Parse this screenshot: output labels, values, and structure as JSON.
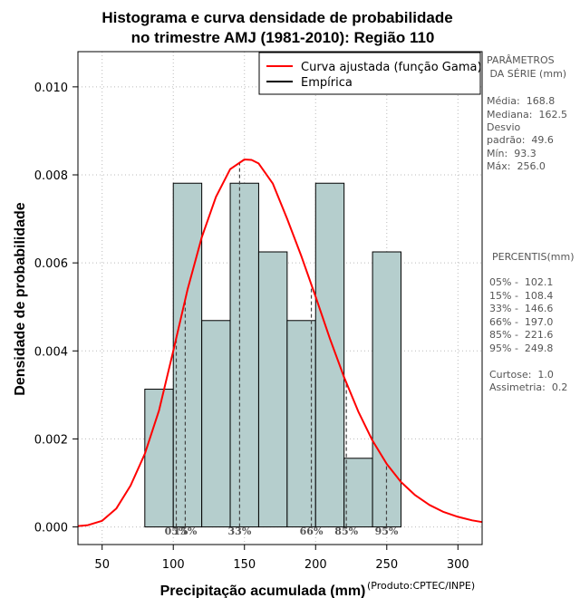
{
  "chart_data": {
    "type": "bar",
    "title_line1": "Histograma e curva densidade de probabilidade",
    "title_line2": "no trimestre AMJ (1981-2010): Região 110",
    "xlabel": "Precipitação acumulada (mm)",
    "ylabel": "Densidade de probabilidade",
    "credit": "(Produto:CPTEC/INPE)",
    "xlim": [
      33,
      317
    ],
    "ylim": [
      -0.0004,
      0.0108
    ],
    "xticks": [
      50,
      100,
      150,
      200,
      250,
      300
    ],
    "yticks": [
      0.0,
      0.002,
      0.004,
      0.006,
      0.008,
      0.01
    ],
    "ytick_labels": [
      "0.000",
      "0.002",
      "0.004",
      "0.006",
      "0.008",
      "0.010"
    ],
    "grid": true,
    "bars": [
      {
        "x0": 80,
        "x1": 100,
        "density": 0.00313
      },
      {
        "x0": 100,
        "x1": 120,
        "density": 0.00781
      },
      {
        "x0": 120,
        "x1": 140,
        "density": 0.00469
      },
      {
        "x0": 140,
        "x1": 160,
        "density": 0.00781
      },
      {
        "x0": 160,
        "x1": 180,
        "density": 0.00625
      },
      {
        "x0": 180,
        "x1": 200,
        "density": 0.00469
      },
      {
        "x0": 200,
        "x1": 220,
        "density": 0.00781
      },
      {
        "x0": 220,
        "x1": 240,
        "density": 0.00156
      },
      {
        "x0": 240,
        "x1": 260,
        "density": 0.00625
      }
    ],
    "curve": {
      "name": "Curva ajustada (função Gama)",
      "color": "#ff0000",
      "x": [
        33,
        40,
        50,
        60,
        70,
        80,
        90,
        100,
        110,
        120,
        130,
        140,
        150,
        155,
        160,
        170,
        180,
        190,
        200,
        210,
        220,
        230,
        240,
        250,
        260,
        270,
        280,
        290,
        300,
        310,
        317
      ],
      "y": [
        2e-05,
        4e-05,
        0.00014,
        0.00042,
        0.00094,
        0.00166,
        0.00265,
        0.004,
        0.00539,
        0.00658,
        0.0075,
        0.00813,
        0.00835,
        0.00834,
        0.00826,
        0.0078,
        0.007,
        0.00615,
        0.00523,
        0.00428,
        0.0034,
        0.00262,
        0.00196,
        0.00143,
        0.00102,
        0.00072,
        0.0005,
        0.00034,
        0.00023,
        0.00015,
        0.00011
      ]
    },
    "empirica_name": "Empírica",
    "empirica_color": "#000000",
    "bar_fill": "#b5cecd",
    "percentile_lines": [
      {
        "label": "05%",
        "x": 102.1
      },
      {
        "label": "15%",
        "x": 108.4
      },
      {
        "label": "33%",
        "x": 146.6
      },
      {
        "label": "66%",
        "x": 197.0
      },
      {
        "label": "85%",
        "x": 221.6
      },
      {
        "label": "95%",
        "x": 249.8
      }
    ]
  },
  "side_panel": {
    "params_title_1": "PARÂMETROS",
    "params_title_2": " DA SÉRIE (mm)",
    "media": "Média:  168.8",
    "mediana": "Mediana:  162.5",
    "desvio_1": "Desvio",
    "desvio_2": "padrão:  49.6",
    "min": "Mín:  93.3",
    "max": "Máx:  256.0",
    "pct_title": "PERCENTIS(mm)",
    "p05": "05% -  102.1",
    "p15": "15% -  108.4",
    "p33": "33% -  146.6",
    "p66": "66% -  197.0",
    "p85": "85% -  221.6",
    "p95": "95% -  249.8",
    "curtose": "Curtose:  1.0",
    "assimetria": "Assimetria:  0.2"
  }
}
